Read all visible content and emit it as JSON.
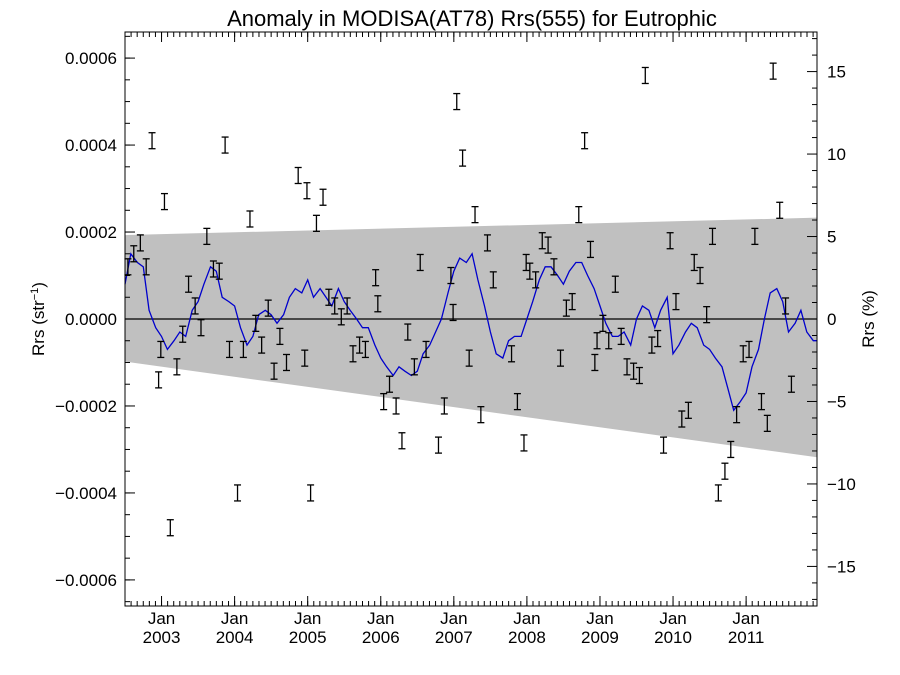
{
  "chart_data": {
    "type": "scatter",
    "title": "Anomaly in MODISA(AT78) Rrs(555) for Eutrophic",
    "ylabel_left": {
      "base": "Rrs (str",
      "sup": "−1",
      "end": ")"
    },
    "ylabel_right": "Rrs (%)",
    "xlim": [
      2002.5,
      2011.97
    ],
    "ylim": [
      -0.00066,
      0.00066
    ],
    "ylim_right": [
      -17.4,
      17.4
    ],
    "grid": false,
    "left_ticks": [
      {
        "value": 0.0006,
        "label": "0.0006"
      },
      {
        "value": 0.0004,
        "label": "0.0004"
      },
      {
        "value": 0.0002,
        "label": "0.0002"
      },
      {
        "value": 0.0,
        "label": "0.0000"
      },
      {
        "value": -0.0002,
        "label": "−0.0002"
      },
      {
        "value": -0.0004,
        "label": "−0.0004"
      },
      {
        "value": -0.0006,
        "label": "−0.0006"
      }
    ],
    "right_ticks": [
      {
        "value": 15,
        "label": "15"
      },
      {
        "value": 10,
        "label": "10"
      },
      {
        "value": 5,
        "label": "5"
      },
      {
        "value": 0,
        "label": "0"
      },
      {
        "value": -5,
        "label": "−5"
      },
      {
        "value": -10,
        "label": "−10"
      },
      {
        "value": -15,
        "label": "−15"
      }
    ],
    "x_ticks": [
      {
        "value": 2003.0,
        "month": "Jan",
        "year": "2003"
      },
      {
        "value": 2004.0,
        "month": "Jan",
        "year": "2004"
      },
      {
        "value": 2005.0,
        "month": "Jan",
        "year": "2005"
      },
      {
        "value": 2006.0,
        "month": "Jan",
        "year": "2006"
      },
      {
        "value": 2007.0,
        "month": "Jan",
        "year": "2007"
      },
      {
        "value": 2008.0,
        "month": "Jan",
        "year": "2008"
      },
      {
        "value": 2009.0,
        "month": "Jan",
        "year": "2009"
      },
      {
        "value": 2010.0,
        "month": "Jan",
        "year": "2010"
      },
      {
        "value": 2011.0,
        "month": "Jan",
        "year": "2011"
      }
    ],
    "band": {
      "x": [
        2002.5,
        2011.97
      ],
      "upper": [
        0.000193,
        0.000233
      ],
      "lower": [
        -9.8e-05,
        -0.000318
      ],
      "color": "#c0c0c0"
    },
    "colors": {
      "line": "#0000cc",
      "points": "#000000",
      "zero": "#000000"
    },
    "points": [
      {
        "x": 2002.54,
        "y": 0.00012
      },
      {
        "x": 2002.62,
        "y": 0.00015
      },
      {
        "x": 2002.71,
        "y": 0.000175
      },
      {
        "x": 2002.79,
        "y": 0.00012
      },
      {
        "x": 2002.87,
        "y": 0.00041
      },
      {
        "x": 2002.96,
        "y": -0.00014
      },
      {
        "x": 2002.99,
        "y": -7e-05
      },
      {
        "x": 2003.04,
        "y": 0.00027
      },
      {
        "x": 2003.12,
        "y": -0.00048
      },
      {
        "x": 2003.21,
        "y": -0.00011
      },
      {
        "x": 2003.29,
        "y": -3.5e-05
      },
      {
        "x": 2003.37,
        "y": 8e-05
      },
      {
        "x": 2003.46,
        "y": 3e-05
      },
      {
        "x": 2003.54,
        "y": -2e-05
      },
      {
        "x": 2003.62,
        "y": 0.00019
      },
      {
        "x": 2003.71,
        "y": 0.000115
      },
      {
        "x": 2003.79,
        "y": 0.00011
      },
      {
        "x": 2003.87,
        "y": 0.0004
      },
      {
        "x": 2003.93,
        "y": -7e-05
      },
      {
        "x": 2004.04,
        "y": -0.0004
      },
      {
        "x": 2004.12,
        "y": -7e-05
      },
      {
        "x": 2004.21,
        "y": 0.00023
      },
      {
        "x": 2004.29,
        "y": -1e-05
      },
      {
        "x": 2004.37,
        "y": -6e-05
      },
      {
        "x": 2004.46,
        "y": 2.5e-05
      },
      {
        "x": 2004.54,
        "y": -0.00012
      },
      {
        "x": 2004.62,
        "y": -4e-05
      },
      {
        "x": 2004.71,
        "y": -0.0001
      },
      {
        "x": 2004.87,
        "y": 0.00033
      },
      {
        "x": 2004.96,
        "y": -9e-05
      },
      {
        "x": 2004.99,
        "y": 0.000295
      },
      {
        "x": 2005.04,
        "y": -0.0004
      },
      {
        "x": 2005.12,
        "y": 0.00022
      },
      {
        "x": 2005.21,
        "y": 0.00028
      },
      {
        "x": 2005.29,
        "y": 5e-05
      },
      {
        "x": 2005.37,
        "y": 3e-05
      },
      {
        "x": 2005.46,
        "y": 5e-06
      },
      {
        "x": 2005.54,
        "y": 3e-05
      },
      {
        "x": 2005.62,
        "y": -8e-05
      },
      {
        "x": 2005.71,
        "y": -6e-05
      },
      {
        "x": 2005.79,
        "y": -7e-05
      },
      {
        "x": 2005.93,
        "y": 9.5e-05
      },
      {
        "x": 2005.96,
        "y": 3.5e-05
      },
      {
        "x": 2006.04,
        "y": -0.00019
      },
      {
        "x": 2006.12,
        "y": -0.00015
      },
      {
        "x": 2006.21,
        "y": -0.0002
      },
      {
        "x": 2006.29,
        "y": -0.00028
      },
      {
        "x": 2006.37,
        "y": -3e-05
      },
      {
        "x": 2006.46,
        "y": -0.00011
      },
      {
        "x": 2006.54,
        "y": 0.00013
      },
      {
        "x": 2006.62,
        "y": -7e-05
      },
      {
        "x": 2006.79,
        "y": -0.00029
      },
      {
        "x": 2006.87,
        "y": -0.0002
      },
      {
        "x": 2006.96,
        "y": 0.0001
      },
      {
        "x": 2006.99,
        "y": 1.5e-05
      },
      {
        "x": 2007.04,
        "y": 0.0005
      },
      {
        "x": 2007.12,
        "y": 0.00037
      },
      {
        "x": 2007.21,
        "y": -9e-05
      },
      {
        "x": 2007.29,
        "y": 0.00024
      },
      {
        "x": 2007.37,
        "y": -0.00022
      },
      {
        "x": 2007.46,
        "y": 0.000175
      },
      {
        "x": 2007.54,
        "y": 9e-05
      },
      {
        "x": 2007.79,
        "y": -8e-05
      },
      {
        "x": 2007.87,
        "y": -0.00019
      },
      {
        "x": 2007.96,
        "y": -0.000285
      },
      {
        "x": 2007.99,
        "y": 0.00013
      },
      {
        "x": 2008.04,
        "y": 0.00011
      },
      {
        "x": 2008.12,
        "y": 9e-05
      },
      {
        "x": 2008.21,
        "y": 0.00018
      },
      {
        "x": 2008.29,
        "y": 0.00017
      },
      {
        "x": 2008.37,
        "y": 0.00012
      },
      {
        "x": 2008.46,
        "y": -9e-05
      },
      {
        "x": 2008.54,
        "y": 2.5e-05
      },
      {
        "x": 2008.62,
        "y": 4e-05
      },
      {
        "x": 2008.71,
        "y": 0.00024
      },
      {
        "x": 2008.79,
        "y": 0.00041
      },
      {
        "x": 2008.87,
        "y": 0.00016
      },
      {
        "x": 2008.93,
        "y": -0.0001
      },
      {
        "x": 2008.96,
        "y": -5e-05
      },
      {
        "x": 2009.04,
        "y": -1e-05
      },
      {
        "x": 2009.12,
        "y": -5e-05
      },
      {
        "x": 2009.21,
        "y": 8e-05
      },
      {
        "x": 2009.29,
        "y": -4e-05
      },
      {
        "x": 2009.37,
        "y": -0.00011
      },
      {
        "x": 2009.46,
        "y": -0.00012
      },
      {
        "x": 2009.54,
        "y": -0.00013
      },
      {
        "x": 2009.62,
        "y": 0.00056
      },
      {
        "x": 2009.71,
        "y": -6e-05
      },
      {
        "x": 2009.79,
        "y": -4.5e-05
      },
      {
        "x": 2009.87,
        "y": -0.00029
      },
      {
        "x": 2009.96,
        "y": 0.00018
      },
      {
        "x": 2010.04,
        "y": 4e-05
      },
      {
        "x": 2010.12,
        "y": -0.00023
      },
      {
        "x": 2010.21,
        "y": -0.00021
      },
      {
        "x": 2010.29,
        "y": 0.00013
      },
      {
        "x": 2010.37,
        "y": 0.0001
      },
      {
        "x": 2010.46,
        "y": 1e-05
      },
      {
        "x": 2010.54,
        "y": 0.00019
      },
      {
        "x": 2010.62,
        "y": -0.0004
      },
      {
        "x": 2010.71,
        "y": -0.00035
      },
      {
        "x": 2010.79,
        "y": -0.0003
      },
      {
        "x": 2010.87,
        "y": -0.00022
      },
      {
        "x": 2010.96,
        "y": -8e-05
      },
      {
        "x": 2011.04,
        "y": -7e-05
      },
      {
        "x": 2011.12,
        "y": 0.00019
      },
      {
        "x": 2011.21,
        "y": -0.00019
      },
      {
        "x": 2011.29,
        "y": -0.00024
      },
      {
        "x": 2011.37,
        "y": 0.00057
      },
      {
        "x": 2011.46,
        "y": 0.00025
      },
      {
        "x": 2011.54,
        "y": 3e-05
      },
      {
        "x": 2011.62,
        "y": -0.00015
      }
    ],
    "series": [
      {
        "x": [
          2002.5,
          2002.58,
          2002.67,
          2002.75,
          2002.83,
          2002.92,
          2003.0,
          2003.08,
          2003.17,
          2003.25,
          2003.33,
          2003.42,
          2003.5,
          2003.58,
          2003.67,
          2003.75,
          2003.83,
          2003.92,
          2004.0,
          2004.08,
          2004.17,
          2004.25,
          2004.33,
          2004.42,
          2004.5,
          2004.58,
          2004.67,
          2004.75,
          2004.83,
          2004.92,
          2005.0,
          2005.08,
          2005.17,
          2005.25,
          2005.33,
          2005.42,
          2005.5,
          2005.58,
          2005.67,
          2005.75,
          2005.83,
          2005.92,
          2006.0,
          2006.08,
          2006.17,
          2006.25,
          2006.33,
          2006.42,
          2006.5,
          2006.58,
          2006.67,
          2006.75,
          2006.83,
          2006.92,
          2007.0,
          2007.08,
          2007.17,
          2007.25,
          2007.33,
          2007.42,
          2007.5,
          2007.58,
          2007.67,
          2007.75,
          2007.83,
          2007.92,
          2008.0,
          2008.08,
          2008.17,
          2008.25,
          2008.33,
          2008.42,
          2008.5,
          2008.58,
          2008.67,
          2008.75,
          2008.83,
          2008.92,
          2009.0,
          2009.08,
          2009.17,
          2009.25,
          2009.33,
          2009.42,
          2009.5,
          2009.58,
          2009.67,
          2009.75,
          2009.83,
          2009.92,
          2010.0,
          2010.08,
          2010.17,
          2010.25,
          2010.33,
          2010.42,
          2010.5,
          2010.58,
          2010.67,
          2010.75,
          2010.83,
          2010.92,
          2011.0,
          2011.08,
          2011.17,
          2011.25,
          2011.33,
          2011.42,
          2011.5,
          2011.58,
          2011.67,
          2011.75,
          2011.83,
          2011.92,
          2011.97
        ],
        "y": [
          8e-05,
          0.00015,
          0.00013,
          0.00012,
          2e-05,
          -2e-05,
          -4e-05,
          -7e-05,
          -5e-05,
          -3e-05,
          -4e-05,
          2e-05,
          4e-05,
          8e-05,
          0.00012,
          0.00011,
          5e-05,
          4e-05,
          3e-05,
          -2e-05,
          -6e-05,
          -4e-05,
          1e-05,
          2e-05,
          1e-05,
          -1e-05,
          1e-05,
          5e-05,
          7e-05,
          6e-05,
          9e-05,
          5e-05,
          7e-05,
          5e-05,
          3e-05,
          7e-05,
          4e-05,
          2e-05,
          0.0,
          -2e-05,
          -2e-05,
          -6e-05,
          -9e-05,
          -0.00011,
          -0.00013,
          -0.00011,
          -0.00012,
          -0.00013,
          -0.00012,
          -8e-05,
          -6e-05,
          -3e-05,
          0.0,
          6e-05,
          0.00011,
          0.00014,
          0.00013,
          0.00015,
          9e-05,
          3e-05,
          -3e-05,
          -8e-05,
          -9e-05,
          -5e-05,
          -4e-05,
          -4e-05,
          0.0,
          4e-05,
          9e-05,
          0.00012,
          0.00012,
          0.0001,
          8e-05,
          0.00011,
          0.00013,
          0.00013,
          0.0001,
          7e-05,
          3e-05,
          -1e-05,
          -4e-05,
          -4e-05,
          -3e-05,
          -6e-05,
          0.0,
          3e-05,
          2e-05,
          -2e-05,
          2e-05,
          5e-05,
          -8e-05,
          -6e-05,
          -3e-05,
          -1e-05,
          -2e-05,
          -6e-05,
          -7e-05,
          -9e-05,
          -0.00011,
          -0.00016,
          -0.00021,
          -0.00019,
          -0.00017,
          -0.00011,
          -7e-05,
          0.0,
          6e-05,
          7e-05,
          4e-05,
          -3e-05,
          -1e-05,
          2e-05,
          -3e-05,
          -5e-05,
          -5e-05
        ]
      }
    ]
  }
}
